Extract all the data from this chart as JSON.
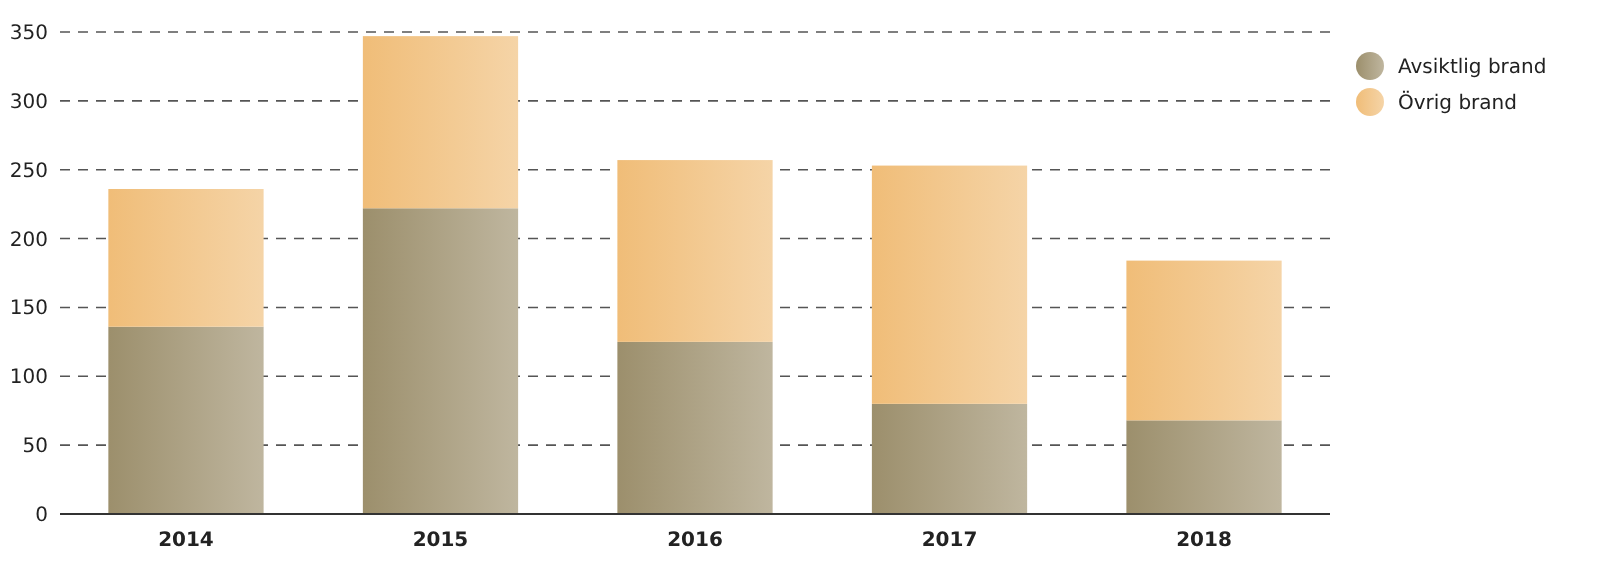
{
  "chart_data": {
    "type": "bar",
    "stacked": true,
    "categories": [
      "2014",
      "2015",
      "2016",
      "2017",
      "2018"
    ],
    "series": [
      {
        "name": "Avsiktlig brand",
        "color": "#9c8f6c",
        "values": [
          136,
          222,
          125,
          80,
          68
        ]
      },
      {
        "name": "Övrig brand",
        "color": "#f0bd78",
        "values": [
          100,
          125,
          132,
          173,
          116
        ]
      }
    ],
    "ylim": [
      0,
      350
    ],
    "yticks": [
      0,
      50,
      100,
      150,
      200,
      250,
      300,
      350
    ],
    "grid": "y",
    "legend": "top right"
  }
}
